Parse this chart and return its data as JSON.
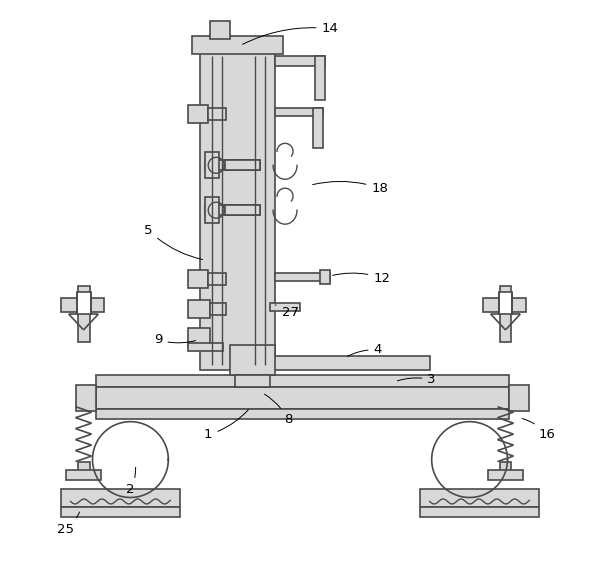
{
  "bg_color": "#ffffff",
  "line_color": "#4a4a4a",
  "line_width": 1.0,
  "figure_size": [
    6.04,
    5.69
  ],
  "dpi": 100
}
